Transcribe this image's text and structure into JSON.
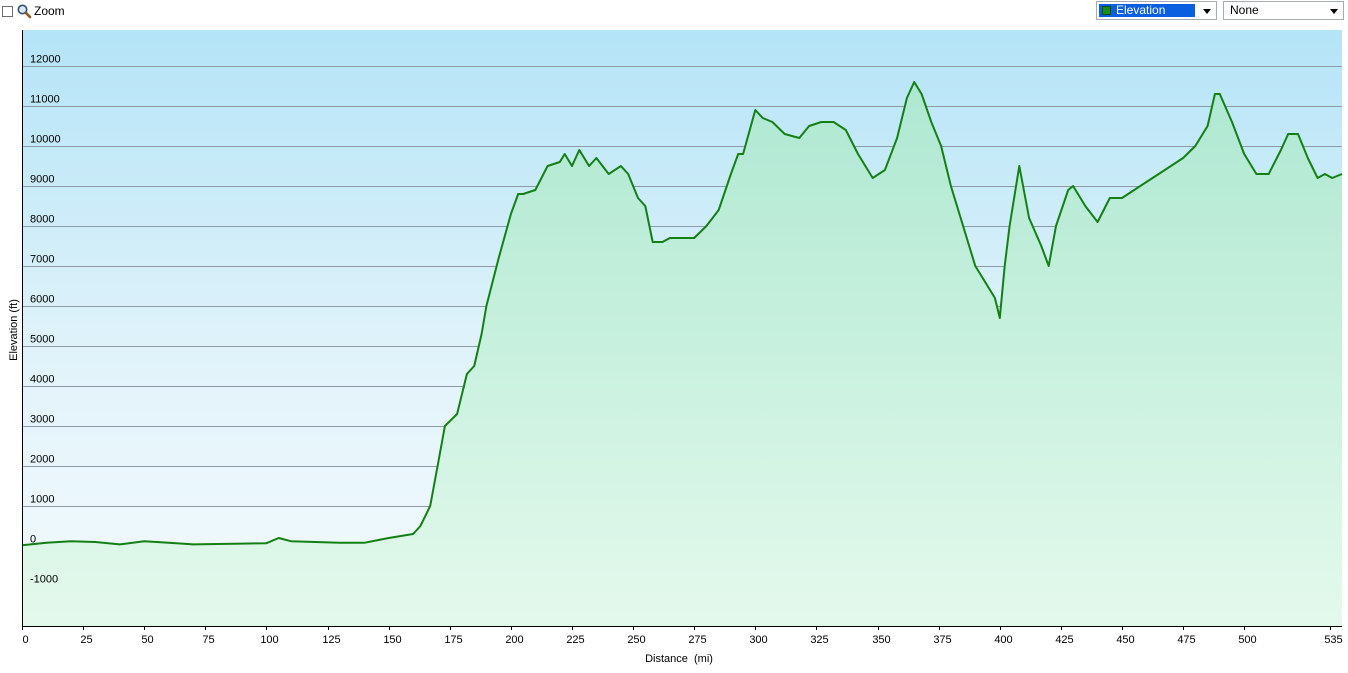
{
  "toolbar": {
    "zoom_label": "Zoom",
    "metric_select": {
      "value": "Elevation",
      "swatch_color": "#1a8a1a"
    },
    "compare_select": {
      "value": "None"
    }
  },
  "chart_data": {
    "type": "area",
    "xlabel": "Distance  (mi)",
    "ylabel": "Elevation (ft)",
    "xlim": [
      0,
      540
    ],
    "ylim": [
      -2000,
      12900
    ],
    "xticks": [
      0,
      25,
      50,
      75,
      100,
      125,
      150,
      175,
      200,
      225,
      250,
      275,
      300,
      325,
      350,
      375,
      400,
      425,
      450,
      475,
      500,
      535
    ],
    "yticks": [
      -1000,
      0,
      1000,
      2000,
      3000,
      4000,
      5000,
      6000,
      7000,
      8000,
      9000,
      10000,
      11000,
      12000
    ],
    "grid": true,
    "line_color": "#138013",
    "series": [
      {
        "x": [
          0,
          10,
          20,
          30,
          40,
          50,
          60,
          70,
          80,
          90,
          100,
          105,
          110,
          120,
          130,
          140,
          150,
          160,
          163,
          167,
          170,
          173,
          178,
          182,
          185,
          188,
          190,
          195,
          200,
          203,
          205,
          210,
          215,
          220,
          222,
          225,
          228,
          232,
          235,
          240,
          245,
          248,
          252,
          255,
          258,
          262,
          265,
          270,
          275,
          280,
          285,
          290,
          293,
          295,
          300,
          303,
          307,
          312,
          318,
          322,
          327,
          332,
          337,
          342,
          348,
          353,
          358,
          362,
          365,
          368,
          372,
          376,
          380,
          385,
          390,
          395,
          398,
          400,
          402,
          404,
          408,
          412,
          417,
          420,
          423,
          428,
          430,
          435,
          440,
          445,
          450,
          455,
          460,
          465,
          470,
          475,
          480,
          485,
          488,
          490,
          495,
          500,
          505,
          510,
          515,
          518,
          522,
          526,
          530,
          533,
          536,
          540
        ],
        "y": [
          20,
          80,
          120,
          100,
          40,
          120,
          80,
          40,
          50,
          60,
          70,
          200,
          120,
          100,
          80,
          80,
          200,
          300,
          500,
          1000,
          2000,
          3000,
          3300,
          4300,
          4500,
          5300,
          6000,
          7200,
          8300,
          8800,
          8800,
          8900,
          9500,
          9600,
          9800,
          9500,
          9900,
          9500,
          9700,
          9300,
          9500,
          9300,
          8700,
          8500,
          7600,
          7600,
          7700,
          7700,
          7700,
          8000,
          8400,
          9300,
          9800,
          9800,
          10900,
          10700,
          10600,
          10300,
          10200,
          10500,
          10600,
          10600,
          10400,
          9800,
          9200,
          9400,
          10200,
          11200,
          11600,
          11300,
          10600,
          10000,
          9000,
          8000,
          7000,
          6500,
          6200,
          5700,
          7000,
          8000,
          9500,
          8200,
          7500,
          7000,
          8000,
          8900,
          9000,
          8500,
          8100,
          8700,
          8700,
          8900,
          9100,
          9300,
          9500,
          9700,
          10000,
          10500,
          11300,
          11300,
          10600,
          9800,
          9300,
          9300,
          9900,
          10300,
          10300,
          9700,
          9200,
          9300,
          9200,
          9300
        ]
      }
    ]
  }
}
